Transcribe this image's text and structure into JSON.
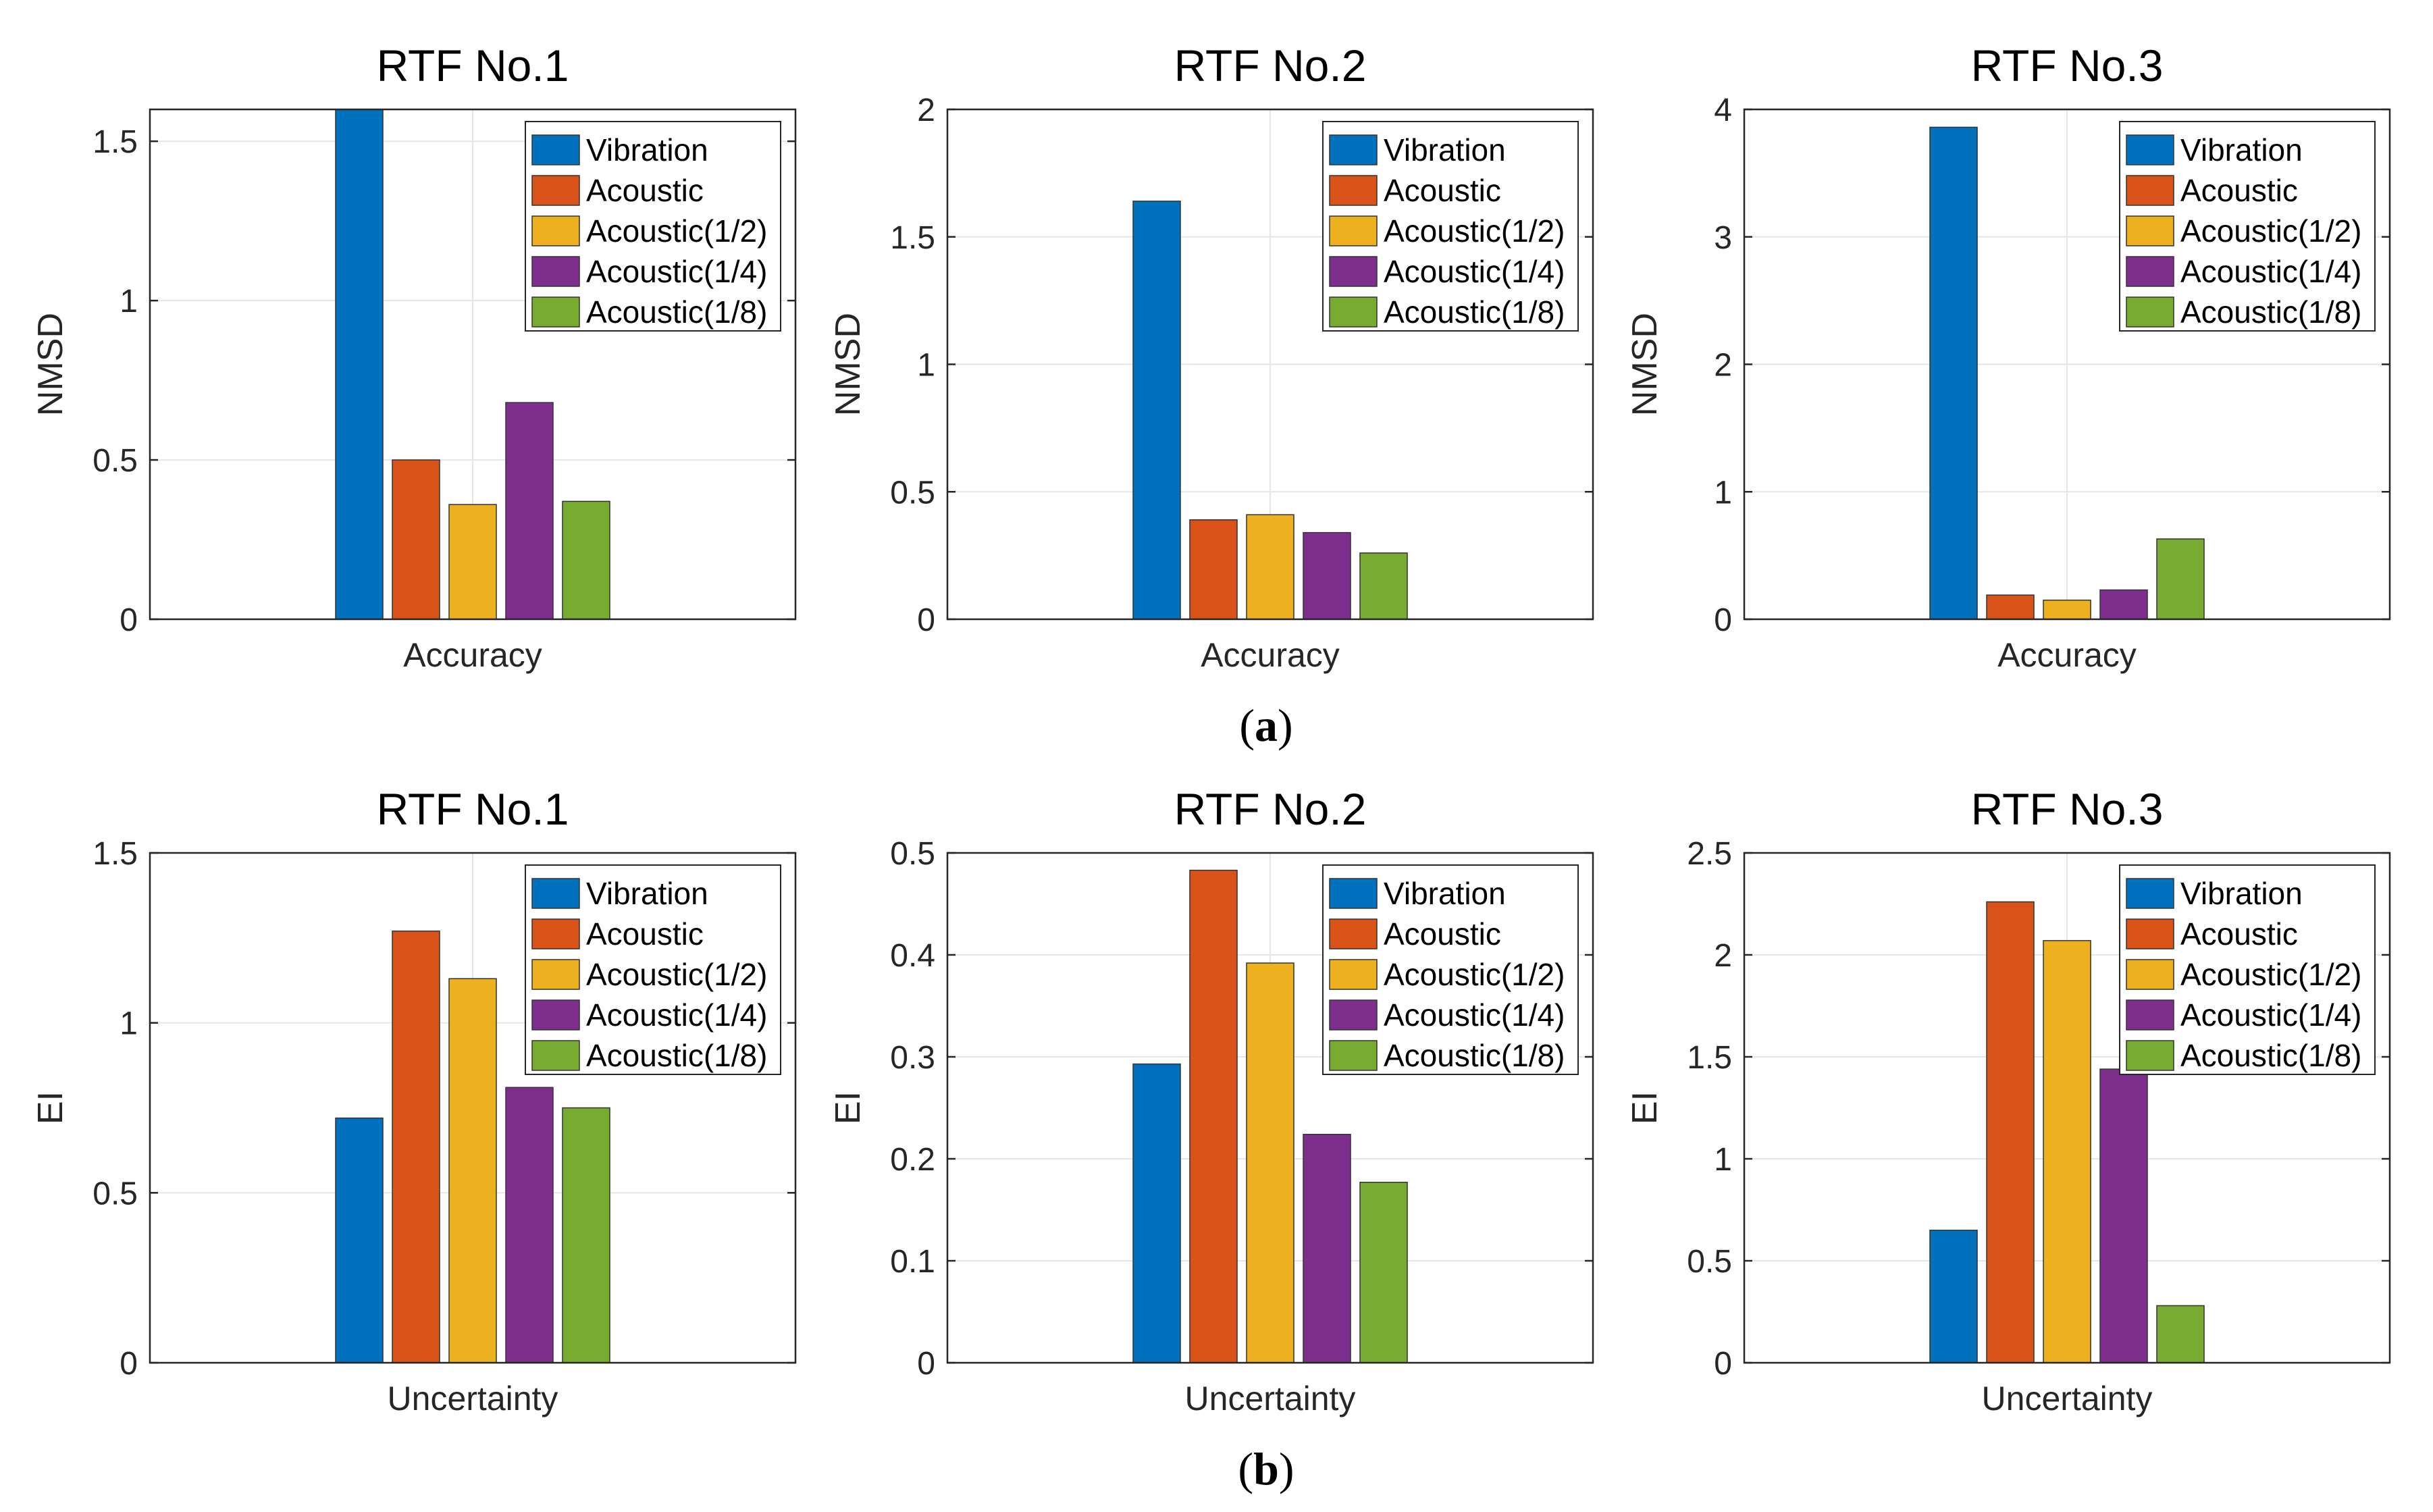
{
  "figure": {
    "captions": [
      {
        "open": "(",
        "letter": "a",
        "close": ")"
      },
      {
        "open": "(",
        "letter": "b",
        "close": ")"
      }
    ]
  },
  "colors": {
    "Vibration": "#0072BD",
    "Acoustic": "#D95319",
    "Acoustic(1/2)": "#EDB120",
    "Acoustic(1/4)": "#7E2F8E",
    "Acoustic(1/8)": "#77AC30"
  },
  "chart_data": [
    {
      "type": "bar",
      "title": "RTF No.1",
      "ylabel": "NMSD",
      "xlabel": "Accuracy",
      "ylim": [
        0,
        1.6
      ],
      "yticks": [
        0,
        0.5,
        1,
        1.5
      ],
      "ytick_labels": [
        "0",
        "0.5",
        "1",
        "1.5"
      ],
      "grid": true,
      "legend_position": "top-right",
      "series": [
        {
          "name": "Vibration",
          "value": 1.6
        },
        {
          "name": "Acoustic",
          "value": 0.5
        },
        {
          "name": "Acoustic(1/2)",
          "value": 0.36
        },
        {
          "name": "Acoustic(1/4)",
          "value": 0.68
        },
        {
          "name": "Acoustic(1/8)",
          "value": 0.37
        }
      ]
    },
    {
      "type": "bar",
      "title": "RTF No.2",
      "ylabel": "NMSD",
      "xlabel": "Accuracy",
      "ylim": [
        0,
        2
      ],
      "yticks": [
        0,
        0.5,
        1,
        1.5,
        2
      ],
      "ytick_labels": [
        "0",
        "0.5",
        "1",
        "1.5",
        "2"
      ],
      "grid": true,
      "legend_position": "top-right",
      "series": [
        {
          "name": "Vibration",
          "value": 1.64
        },
        {
          "name": "Acoustic",
          "value": 0.39
        },
        {
          "name": "Acoustic(1/2)",
          "value": 0.41
        },
        {
          "name": "Acoustic(1/4)",
          "value": 0.34
        },
        {
          "name": "Acoustic(1/8)",
          "value": 0.26
        }
      ]
    },
    {
      "type": "bar",
      "title": "RTF No.3",
      "ylabel": "NMSD",
      "xlabel": "Accuracy",
      "ylim": [
        0,
        4
      ],
      "yticks": [
        0,
        1,
        2,
        3,
        4
      ],
      "ytick_labels": [
        "0",
        "1",
        "2",
        "3",
        "4"
      ],
      "grid": true,
      "legend_position": "top-right",
      "series": [
        {
          "name": "Vibration",
          "value": 3.86
        },
        {
          "name": "Acoustic",
          "value": 0.19
        },
        {
          "name": "Acoustic(1/2)",
          "value": 0.15
        },
        {
          "name": "Acoustic(1/4)",
          "value": 0.23
        },
        {
          "name": "Acoustic(1/8)",
          "value": 0.63
        }
      ]
    },
    {
      "type": "bar",
      "title": "RTF No.1",
      "ylabel": "EI",
      "xlabel": "Uncertainty",
      "ylim": [
        0,
        1.5
      ],
      "yticks": [
        0,
        0.5,
        1,
        1.5
      ],
      "ytick_labels": [
        "0",
        "0.5",
        "1",
        "1.5"
      ],
      "grid": true,
      "legend_position": "top-right",
      "series": [
        {
          "name": "Vibration",
          "value": 0.72
        },
        {
          "name": "Acoustic",
          "value": 1.27
        },
        {
          "name": "Acoustic(1/2)",
          "value": 1.13
        },
        {
          "name": "Acoustic(1/4)",
          "value": 0.81
        },
        {
          "name": "Acoustic(1/8)",
          "value": 0.75
        }
      ]
    },
    {
      "type": "bar",
      "title": "RTF No.2",
      "ylabel": "EI",
      "xlabel": "Uncertainty",
      "ylim": [
        0,
        0.5
      ],
      "yticks": [
        0,
        0.1,
        0.2,
        0.3,
        0.4,
        0.5
      ],
      "ytick_labels": [
        "0",
        "0.1",
        "0.2",
        "0.3",
        "0.4",
        "0.5"
      ],
      "grid": true,
      "legend_position": "top-right",
      "series": [
        {
          "name": "Vibration",
          "value": 0.293
        },
        {
          "name": "Acoustic",
          "value": 0.483
        },
        {
          "name": "Acoustic(1/2)",
          "value": 0.392
        },
        {
          "name": "Acoustic(1/4)",
          "value": 0.224
        },
        {
          "name": "Acoustic(1/8)",
          "value": 0.177
        }
      ]
    },
    {
      "type": "bar",
      "title": "RTF No.3",
      "ylabel": "EI",
      "xlabel": "Uncertainty",
      "ylim": [
        0,
        2.5
      ],
      "yticks": [
        0,
        0.5,
        1,
        1.5,
        2,
        2.5
      ],
      "ytick_labels": [
        "0",
        "0.5",
        "1",
        "1.5",
        "2",
        "2.5"
      ],
      "grid": true,
      "legend_position": "top-right",
      "series": [
        {
          "name": "Vibration",
          "value": 0.65
        },
        {
          "name": "Acoustic",
          "value": 2.26
        },
        {
          "name": "Acoustic(1/2)",
          "value": 2.07
        },
        {
          "name": "Acoustic(1/4)",
          "value": 1.44
        },
        {
          "name": "Acoustic(1/8)",
          "value": 0.28
        }
      ]
    }
  ]
}
